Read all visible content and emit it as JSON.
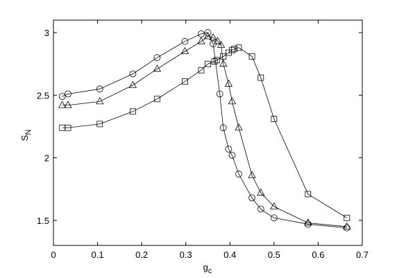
{
  "chart_data": {
    "type": "line",
    "xlabel": {
      "text": "g",
      "sub": "c"
    },
    "ylabel": {
      "text": "S",
      "sub": "N"
    },
    "xlim": [
      0,
      0.7
    ],
    "xticks": [
      0,
      0.1,
      0.2,
      0.3,
      0.4,
      0.5,
      0.6,
      0.7
    ],
    "ylim": [
      1.3,
      3.1
    ],
    "yticks": [
      1.5,
      2,
      2.5,
      3
    ],
    "grid": false,
    "series": [
      {
        "marker": "circle",
        "color": "#000000",
        "x": [
          0.02,
          0.033,
          0.105,
          0.18,
          0.235,
          0.298,
          0.335,
          0.35,
          0.362,
          0.377,
          0.385,
          0.397,
          0.405,
          0.42,
          0.45,
          0.47,
          0.5,
          0.577,
          0.665
        ],
        "values": [
          2.49,
          2.51,
          2.55,
          2.67,
          2.8,
          2.93,
          2.99,
          3.0,
          2.91,
          2.51,
          2.24,
          2.07,
          2.02,
          1.87,
          1.68,
          1.59,
          1.52,
          1.47,
          1.44
        ]
      },
      {
        "marker": "triangle",
        "color": "#000000",
        "x": [
          0.02,
          0.033,
          0.105,
          0.18,
          0.235,
          0.298,
          0.335,
          0.35,
          0.362,
          0.372,
          0.38,
          0.385,
          0.397,
          0.405,
          0.42,
          0.45,
          0.47,
          0.5,
          0.577,
          0.665
        ],
        "values": [
          2.42,
          2.42,
          2.45,
          2.58,
          2.71,
          2.85,
          2.93,
          2.97,
          2.96,
          2.93,
          2.9,
          2.75,
          2.59,
          2.45,
          2.24,
          1.86,
          1.72,
          1.61,
          1.48,
          1.45
        ]
      },
      {
        "marker": "square",
        "color": "#000000",
        "x": [
          0.02,
          0.033,
          0.105,
          0.18,
          0.235,
          0.298,
          0.335,
          0.35,
          0.365,
          0.37,
          0.385,
          0.397,
          0.405,
          0.41,
          0.42,
          0.45,
          0.47,
          0.5,
          0.577,
          0.665
        ],
        "values": [
          2.24,
          2.24,
          2.27,
          2.37,
          2.47,
          2.61,
          2.7,
          2.75,
          2.77,
          2.78,
          2.81,
          2.84,
          2.86,
          2.87,
          2.88,
          2.81,
          2.64,
          2.31,
          1.71,
          1.52
        ]
      }
    ]
  }
}
